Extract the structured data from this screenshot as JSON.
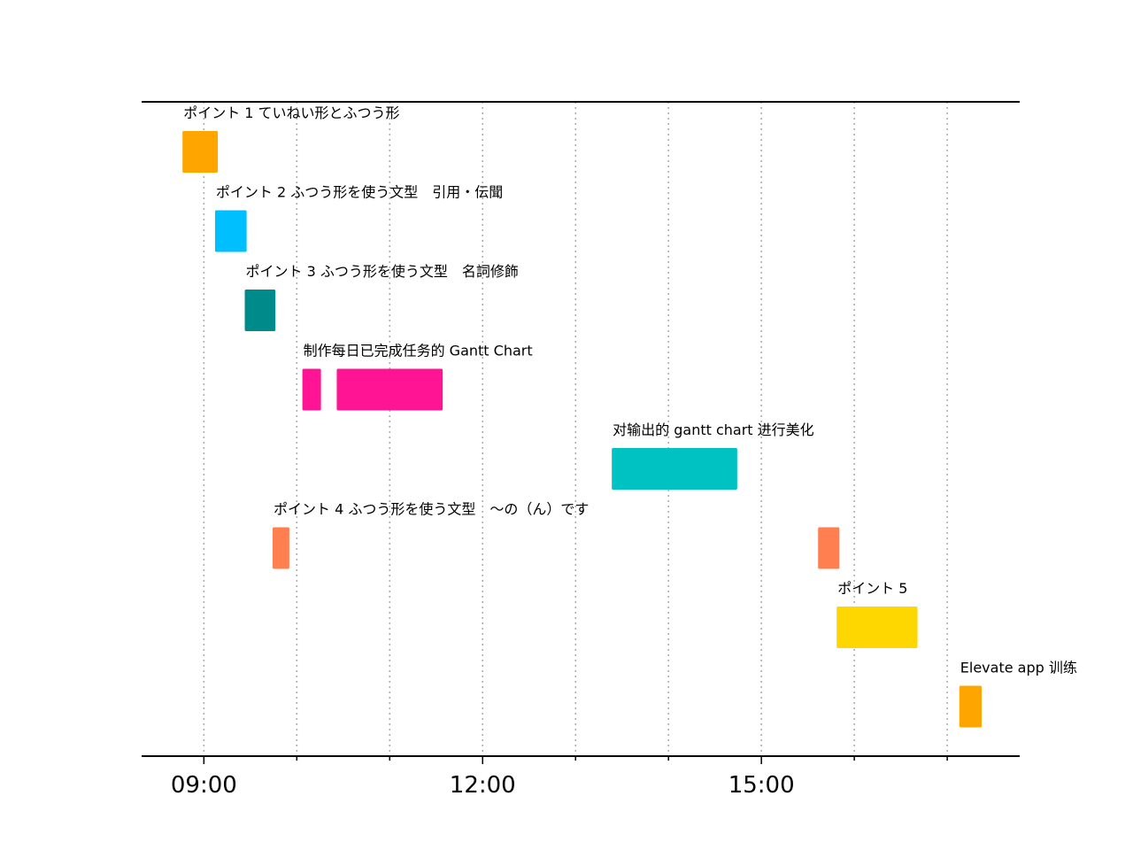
{
  "chart_data": {
    "type": "gantt",
    "x_axis": {
      "unit": "hours",
      "range": [
        8.33,
        17.78
      ],
      "major_ticks": [
        {
          "value": 9,
          "label": "09:00"
        },
        {
          "value": 12,
          "label": "12:00"
        },
        {
          "value": 15,
          "label": "15:00"
        }
      ],
      "minor_ticks": [
        10,
        11,
        13,
        14,
        16,
        17
      ],
      "grid": "vertical dotted at every hour"
    },
    "tasks": [
      {
        "label": "ポイント 1 ていねい形とふつう形",
        "color": "#FFA500",
        "segments": [
          [
            8.77,
            9.15
          ]
        ]
      },
      {
        "label": "ポイント 2 ふつう形を使う文型　引用・伝聞",
        "color": "#00BFFF",
        "segments": [
          [
            9.12,
            9.46
          ]
        ]
      },
      {
        "label": "ポイント 3 ふつう形を使う文型　名詞修飾",
        "color": "#008B8B",
        "segments": [
          [
            9.44,
            9.77
          ]
        ]
      },
      {
        "label": "制作每日已完成任务的 Gantt Chart",
        "color": "#FF1493",
        "segments": [
          [
            10.06,
            10.26
          ],
          [
            10.43,
            11.57
          ]
        ]
      },
      {
        "label": "对输出的 gantt chart 进行美化",
        "color": "#00C2C2",
        "segments": [
          [
            13.39,
            14.74
          ]
        ]
      },
      {
        "label": "ポイント 4 ふつう形を使う文型　〜の（ん）です",
        "color": "#FF7F50",
        "segments": [
          [
            9.74,
            9.92
          ],
          [
            15.61,
            15.84
          ]
        ]
      },
      {
        "label": "ポイント 5",
        "color": "#FFD700",
        "segments": [
          [
            15.81,
            16.68
          ]
        ]
      },
      {
        "label": "Elevate app 训练",
        "color": "#FFA500",
        "segments": [
          [
            17.13,
            17.37
          ]
        ]
      }
    ]
  }
}
